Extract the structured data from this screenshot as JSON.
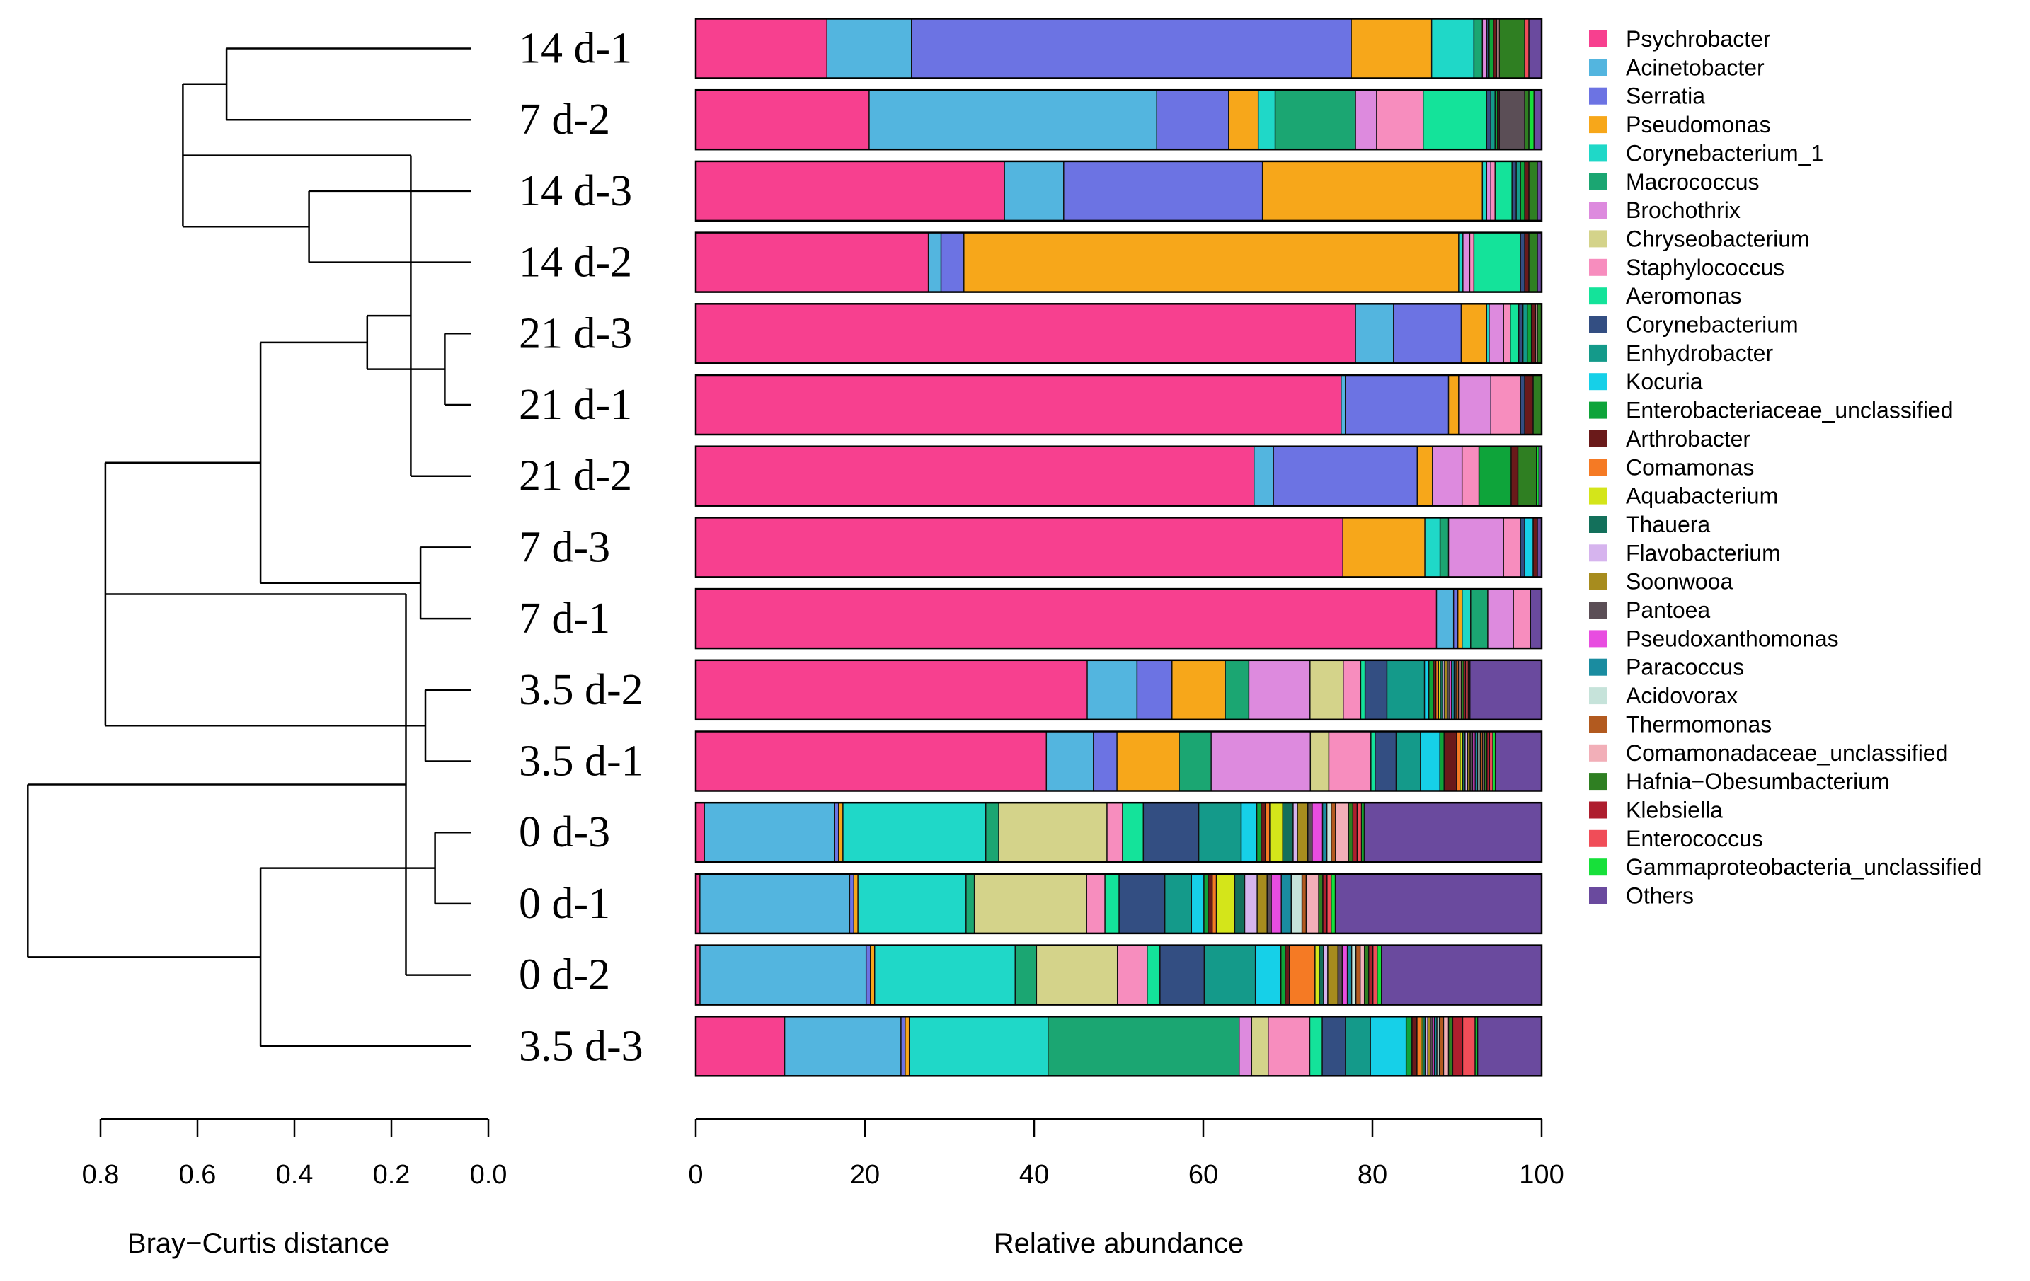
{
  "chart_data": {
    "type": "bar",
    "orientation": "horizontal",
    "stacked": true,
    "xlabel": "Relative abundance",
    "xlim": [
      0,
      100
    ],
    "xticks": [
      "0",
      "20",
      "40",
      "60",
      "80",
      "100"
    ],
    "dendrogram": {
      "xlabel": "Bray−Curtis distance",
      "xlim": [
        0.8,
        0.0
      ],
      "ticks": [
        0.8,
        0.6,
        0.4,
        0.2,
        0.0
      ],
      "tick_labels": [
        "0.8",
        "0.6",
        "0.4",
        "0.2",
        "0.0"
      ],
      "merges": [
        {
          "left": "14 d-1",
          "right": "7 d-2",
          "height": 0.54
        },
        {
          "left": "14 d-3",
          "right": "14 d-2",
          "height": 0.37
        },
        {
          "left": "A",
          "right": "B",
          "height": 0.63
        },
        {
          "left": "21 d-3",
          "right": "21 d-1",
          "height": 0.09
        },
        {
          "left": "C",
          "right": "21 d-2",
          "height": 0.16
        },
        {
          "left": "7 d-3",
          "right": "7 d-1",
          "height": 0.14
        },
        {
          "left": "D",
          "right": "E",
          "height": 0.25
        },
        {
          "left": "3.5 d-2",
          "right": "3.5 d-1",
          "height": 0.13
        },
        {
          "left": "F",
          "right": "G",
          "height": 0.47
        },
        {
          "left": "H",
          "right": "I",
          "height": 0.79
        },
        {
          "left": "0 d-3",
          "right": "0 d-1",
          "height": 0.11
        },
        {
          "left": "J",
          "right": "0 d-2",
          "height": 0.17
        },
        {
          "left": "K",
          "right": "3.5 d-3",
          "height": 0.47
        },
        {
          "left": "L",
          "right": "M",
          "height": 0.95
        }
      ]
    },
    "legend": [
      {
        "name": "Psychrobacter",
        "color": "#F7408F"
      },
      {
        "name": "Acinetobacter",
        "color": "#53B5DF"
      },
      {
        "name": "Serratia",
        "color": "#6C73E3"
      },
      {
        "name": "Pseudomonas",
        "color": "#F7A71A"
      },
      {
        "name": "Corynebacterium_1",
        "color": "#1FD8C8"
      },
      {
        "name": "Macrococcus",
        "color": "#1BA672"
      },
      {
        "name": "Brochothrix",
        "color": "#DD8ADE"
      },
      {
        "name": "Chryseobacterium",
        "color": "#D4D38A"
      },
      {
        "name": "Staphylococcus",
        "color": "#F78DBE"
      },
      {
        "name": "Aeromonas",
        "color": "#14E39A"
      },
      {
        "name": "Corynebacterium",
        "color": "#334E82"
      },
      {
        "name": "Enhydrobacter",
        "color": "#149A8A"
      },
      {
        "name": "Kocuria",
        "color": "#16D0E8"
      },
      {
        "name": "Enterobacteriaceae_unclassified",
        "color": "#0EA43A"
      },
      {
        "name": "Arthrobacter",
        "color": "#6A1A1A"
      },
      {
        "name": "Comamonas",
        "color": "#F57A24"
      },
      {
        "name": "Aquabacterium",
        "color": "#D4E51A"
      },
      {
        "name": "Thauera",
        "color": "#13705B"
      },
      {
        "name": "Flavobacterium",
        "color": "#D6B4EE"
      },
      {
        "name": "Soonwooa",
        "color": "#A78C1E"
      },
      {
        "name": "Pantoea",
        "color": "#5B4E56"
      },
      {
        "name": "Pseudoxanthomonas",
        "color": "#E84DE0"
      },
      {
        "name": "Paracoccus",
        "color": "#1A8CA0"
      },
      {
        "name": "Acidovorax",
        "color": "#C6E3DA"
      },
      {
        "name": "Thermomonas",
        "color": "#B25A1F"
      },
      {
        "name": "Comamonadaceae_unclassified",
        "color": "#F2AFB8"
      },
      {
        "name": "Hafnia−Obesumbacterium",
        "color": "#2F7F22"
      },
      {
        "name": "Klebsiella",
        "color": "#AE1E2E"
      },
      {
        "name": "Enterococcus",
        "color": "#F04D58"
      },
      {
        "name": "Gammaproteobacteria_unclassified",
        "color": "#17E03A"
      },
      {
        "name": "Others",
        "color": "#6A4A9E"
      }
    ],
    "samples": [
      {
        "name": "14 d-1",
        "values": [
          15.5,
          10,
          52,
          9.5,
          5,
          1,
          0.5,
          0,
          0,
          0,
          0.2,
          0.1,
          0,
          0.5,
          0.4,
          0,
          0,
          0,
          0,
          0,
          0,
          0,
          0,
          0,
          0,
          0.3,
          3,
          0,
          0.5,
          0,
          1.5
        ]
      },
      {
        "name": "7 d-2",
        "values": [
          20.5,
          34,
          8.5,
          3.5,
          2,
          9.5,
          2.5,
          0,
          5.5,
          7.5,
          0.5,
          0.5,
          0,
          0.3,
          0.2,
          0,
          0,
          0,
          0,
          0,
          3,
          0,
          0,
          0,
          0,
          0,
          0.5,
          0,
          0,
          0.6,
          0.9
        ]
      },
      {
        "name": "14 d-3",
        "values": [
          36.5,
          7,
          23.5,
          26,
          0.5,
          0,
          0.5,
          0,
          0.5,
          2,
          0.5,
          0.5,
          0,
          0.5,
          0.5,
          0,
          0,
          0,
          0,
          0,
          0,
          0,
          0,
          0,
          0,
          0,
          1,
          0,
          0,
          0,
          0.5
        ]
      },
      {
        "name": "14 d-2",
        "values": [
          27.5,
          1.5,
          2.7,
          58.5,
          0.5,
          0,
          0.8,
          0,
          0.5,
          5.5,
          0.5,
          0,
          0,
          0,
          0.5,
          0,
          0,
          0,
          0,
          0,
          0,
          0,
          0,
          0,
          0,
          0,
          1,
          0,
          0,
          0,
          0.5
        ]
      },
      {
        "name": "21 d-3",
        "values": [
          78,
          4.5,
          8,
          3,
          0.3,
          0,
          1.7,
          0,
          0.8,
          1,
          0.5,
          0.5,
          0,
          0.5,
          0.5,
          0,
          0,
          0,
          0,
          0,
          0,
          0,
          0,
          0,
          0,
          0.2,
          0.5,
          0,
          0,
          0,
          0
        ]
      },
      {
        "name": "21 d-1",
        "values": [
          76.3,
          0.5,
          12.2,
          1.2,
          0,
          0,
          3.8,
          0,
          3.5,
          0,
          0.5,
          0,
          0,
          0,
          1,
          0,
          0,
          0,
          0,
          0,
          0,
          0,
          0,
          0,
          0,
          0,
          1,
          0,
          0,
          0,
          0
        ]
      },
      {
        "name": "21 d-2",
        "values": [
          66,
          2.3,
          17,
          1.8,
          0,
          0,
          3.5,
          0,
          2,
          0,
          0,
          0,
          0,
          3.8,
          0.8,
          0,
          0,
          0,
          0,
          0,
          0,
          0,
          0,
          0,
          0,
          0,
          2.2,
          0,
          0,
          0.3,
          0.3
        ]
      },
      {
        "name": "7 d-3",
        "values": [
          76.5,
          0,
          0,
          9.7,
          1.8,
          1,
          6.5,
          0,
          2,
          0,
          0.5,
          0,
          1,
          0,
          0.5,
          0,
          0,
          0,
          0,
          0,
          0,
          0,
          0,
          0,
          0,
          0,
          0,
          0,
          0,
          0,
          0.5
        ]
      },
      {
        "name": "7 d-1",
        "values": [
          86.7,
          2,
          0.5,
          0.5,
          1,
          2,
          3,
          0,
          2,
          0,
          0,
          0,
          0,
          0,
          0,
          0,
          0,
          0,
          0,
          0,
          0,
          0,
          0,
          0,
          0,
          0,
          0,
          0,
          0,
          0,
          1.3
        ]
      },
      {
        "name": "3.5 d-2",
        "values": [
          44.8,
          5.7,
          4,
          6.1,
          0,
          2.7,
          7,
          3.8,
          2,
          0.5,
          2.5,
          4.3,
          0.5,
          0.5,
          0.3,
          0.3,
          0.2,
          0.3,
          0.2,
          0.3,
          0.3,
          0.2,
          0.3,
          0.2,
          0.3,
          0.3,
          0.3,
          0.2,
          0.3,
          0.2,
          8.2
        ]
      },
      {
        "name": "3.5 d-1",
        "values": [
          41.7,
          5.6,
          2.8,
          7.4,
          0,
          3.8,
          11.8,
          2.2,
          5,
          0.5,
          2.5,
          2.9,
          2.3,
          0.5,
          1.5,
          0.4,
          0.3,
          0.3,
          0.3,
          0.3,
          0.3,
          0.3,
          0.3,
          0.3,
          0.3,
          0.2,
          0.3,
          0.3,
          0.4,
          0.3,
          5.5
        ]
      },
      {
        "name": "0 d-3",
        "values": [
          1,
          15,
          0.5,
          0.5,
          16.5,
          1.5,
          0,
          12.5,
          1.8,
          2.4,
          6.4,
          4.9,
          1.8,
          0.5,
          0.5,
          0.5,
          1.5,
          1.2,
          0.5,
          1.2,
          0.5,
          1.2,
          0.5,
          0.5,
          0.5,
          1.5,
          0.5,
          0.5,
          0.5,
          0.3,
          20.5
        ]
      },
      {
        "name": "0 d-1",
        "values": [
          0.5,
          18,
          0.5,
          0.5,
          13,
          1,
          0,
          13.5,
          2.2,
          1.7,
          5.5,
          3.2,
          1.5,
          0.5,
          0.5,
          0.5,
          2.2,
          1.2,
          1.5,
          1.2,
          0.5,
          1.2,
          1.2,
          1.3,
          0.5,
          1.5,
          0.5,
          0.5,
          0.5,
          0.5,
          24.8
        ]
      },
      {
        "name": "0 d-2",
        "values": [
          0.5,
          19.5,
          0.5,
          0.5,
          16.5,
          2.5,
          0,
          9.5,
          3.5,
          1.5,
          5.2,
          6,
          3,
          0.5,
          0.5,
          3,
          0.5,
          0.5,
          0.5,
          1.2,
          0.5,
          0.6,
          0.5,
          0.5,
          0.5,
          0.5,
          0.5,
          0.5,
          0.5,
          0.5,
          18.8
        ]
      },
      {
        "name": "3.5 d-3",
        "values": [
          10.7,
          14,
          0.5,
          0.5,
          16.7,
          23,
          1.5,
          2,
          5,
          1.5,
          2.8,
          3,
          4.3,
          0.7,
          0.6,
          0.5,
          0.2,
          0.3,
          0.3,
          0.3,
          0.3,
          0.2,
          0.3,
          0.3,
          0.5,
          0.6,
          0.5,
          1.2,
          1.5,
          0.3,
          7.7
        ]
      }
    ]
  }
}
